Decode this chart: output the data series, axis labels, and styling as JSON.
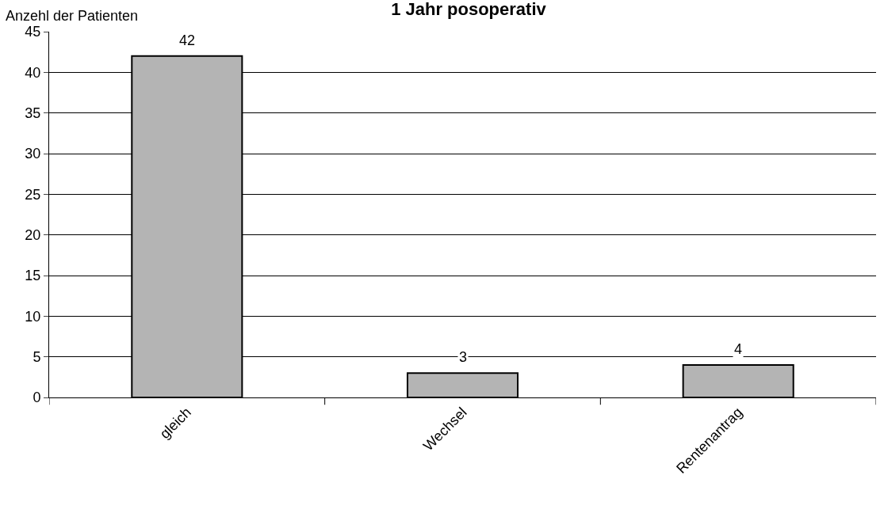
{
  "chart_data": {
    "type": "bar",
    "title": "1 Jahr posoperativ",
    "ylabel": "Anzehl der Patienten",
    "categories": [
      "gleich",
      "Wechsel",
      "Rentenantrag"
    ],
    "values": [
      42,
      3,
      4
    ],
    "color": "#b4b4b4",
    "ylim": [
      0,
      45
    ],
    "yticks": [
      0,
      5,
      10,
      15,
      20,
      25,
      30,
      35,
      40,
      45
    ],
    "grid": "y",
    "data_labels": true
  }
}
